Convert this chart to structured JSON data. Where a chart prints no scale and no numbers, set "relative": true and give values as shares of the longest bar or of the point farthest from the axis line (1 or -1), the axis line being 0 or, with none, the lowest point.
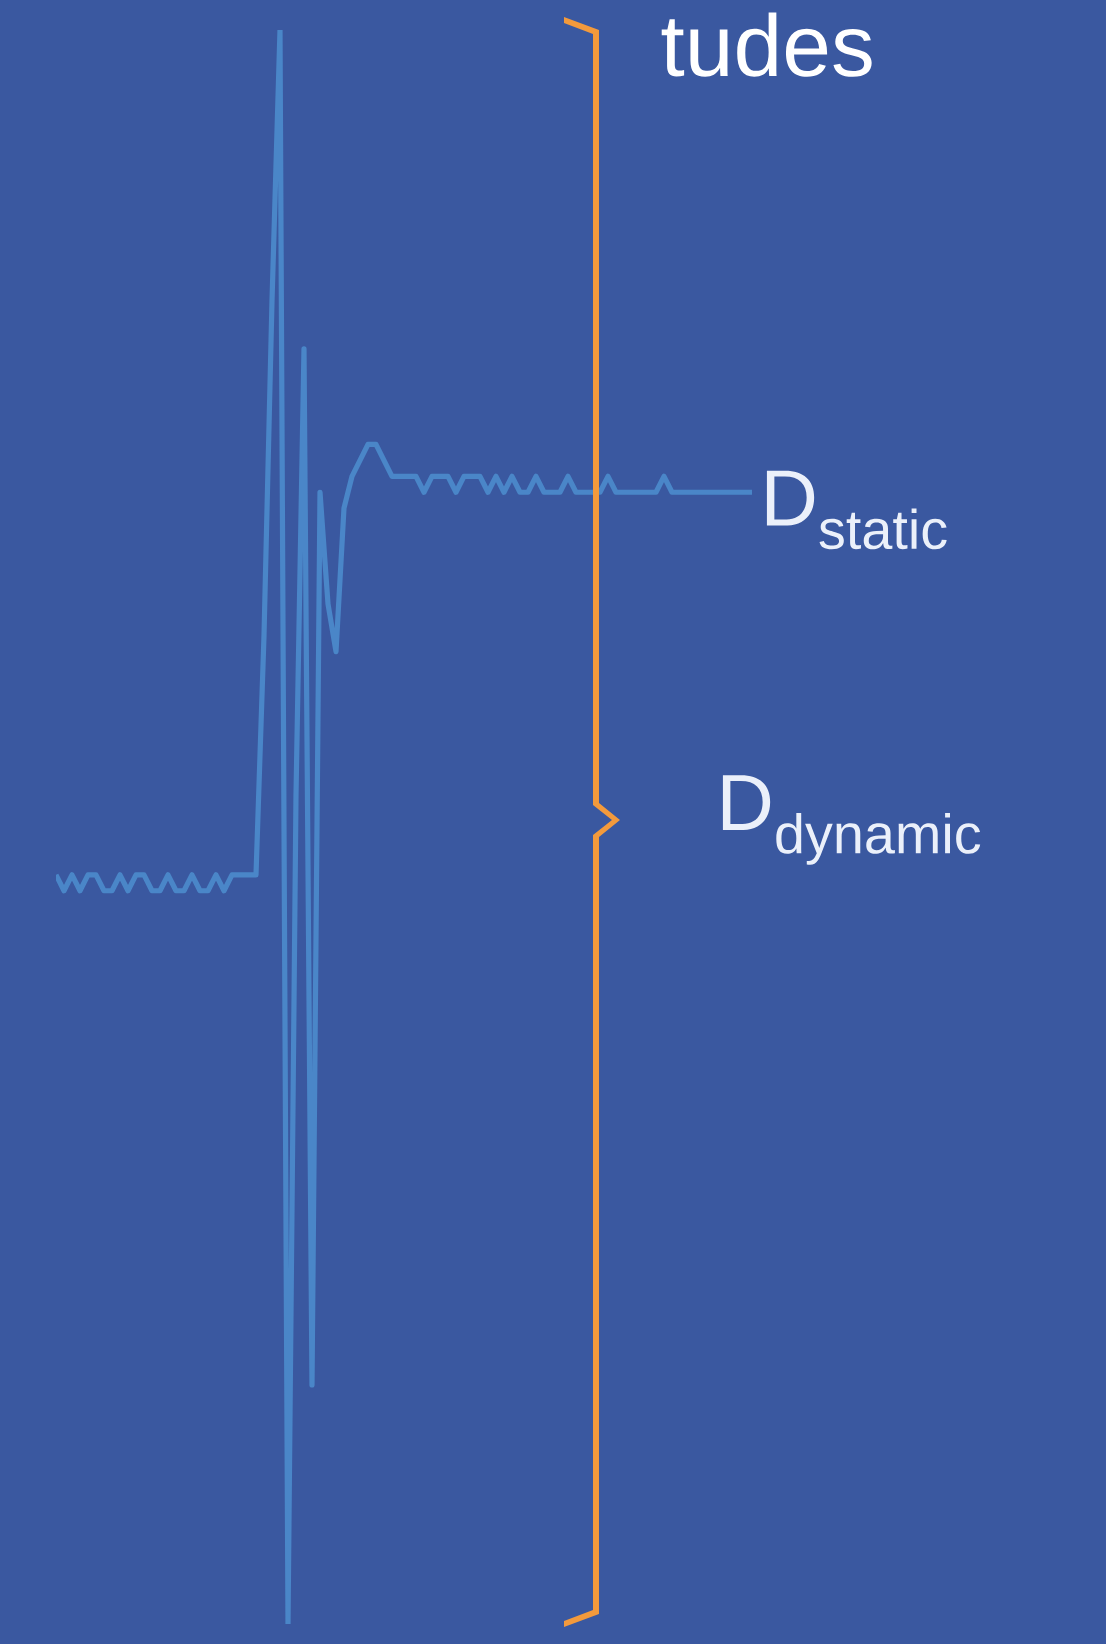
{
  "chart_data": {
    "type": "line",
    "title": "tudes",
    "relative": true,
    "categories": [
      null,
      null,
      null,
      null,
      null,
      null,
      null,
      null,
      null,
      null,
      null,
      null,
      null,
      null,
      null,
      null,
      null,
      null,
      null,
      null,
      null,
      null,
      null,
      null,
      null,
      null,
      null,
      null,
      null,
      null,
      null,
      null,
      null,
      null,
      null,
      null,
      null,
      null,
      null,
      null,
      null,
      null,
      null,
      null,
      null,
      null,
      null,
      null,
      null,
      null,
      null,
      null,
      null,
      null,
      null,
      null,
      null,
      null,
      null,
      null,
      null,
      null,
      null,
      null,
      null,
      null,
      null,
      null,
      null,
      null,
      null,
      null,
      null,
      null,
      null,
      null,
      null,
      null,
      null,
      null,
      null,
      null,
      null,
      null,
      null,
      null,
      null,
      null
    ],
    "series": [
      {
        "color": "#4a86c8",
        "values": [
          0.47,
          0.46,
          0.47,
          0.46,
          0.47,
          0.47,
          0.46,
          0.46,
          0.47,
          0.46,
          0.47,
          0.47,
          0.46,
          0.46,
          0.47,
          0.46,
          0.46,
          0.47,
          0.46,
          0.46,
          0.47,
          0.46,
          0.47,
          0.47,
          0.47,
          0.47,
          0.62,
          0.83,
          1,
          0,
          0.52,
          0.8,
          0.15,
          0.71,
          0.64,
          0.61,
          0.7,
          0.72,
          0.73,
          0.74,
          0.74,
          0.73,
          0.72,
          0.72,
          0.72,
          0.72,
          0.71,
          0.72,
          0.72,
          0.72,
          0.71,
          0.72,
          0.72,
          0.72,
          0.71,
          0.72,
          0.71,
          0.72,
          0.71,
          0.71,
          0.72,
          0.71,
          0.71,
          0.71,
          0.72,
          0.71,
          0.71,
          0.71,
          0.71,
          0.72,
          0.71,
          0.71,
          0.71,
          0.71,
          0.71,
          0.71,
          0.72,
          0.71,
          0.71,
          0.71,
          0.71,
          0.71,
          0.71,
          0.71,
          0.71,
          0.71,
          0.71,
          0.71
        ]
      }
    ],
    "annotations": [
      "D$_{static}$",
      "D$_{dynamic}$"
    ],
    "marker": "none",
    "line_style": "solid"
  }
}
